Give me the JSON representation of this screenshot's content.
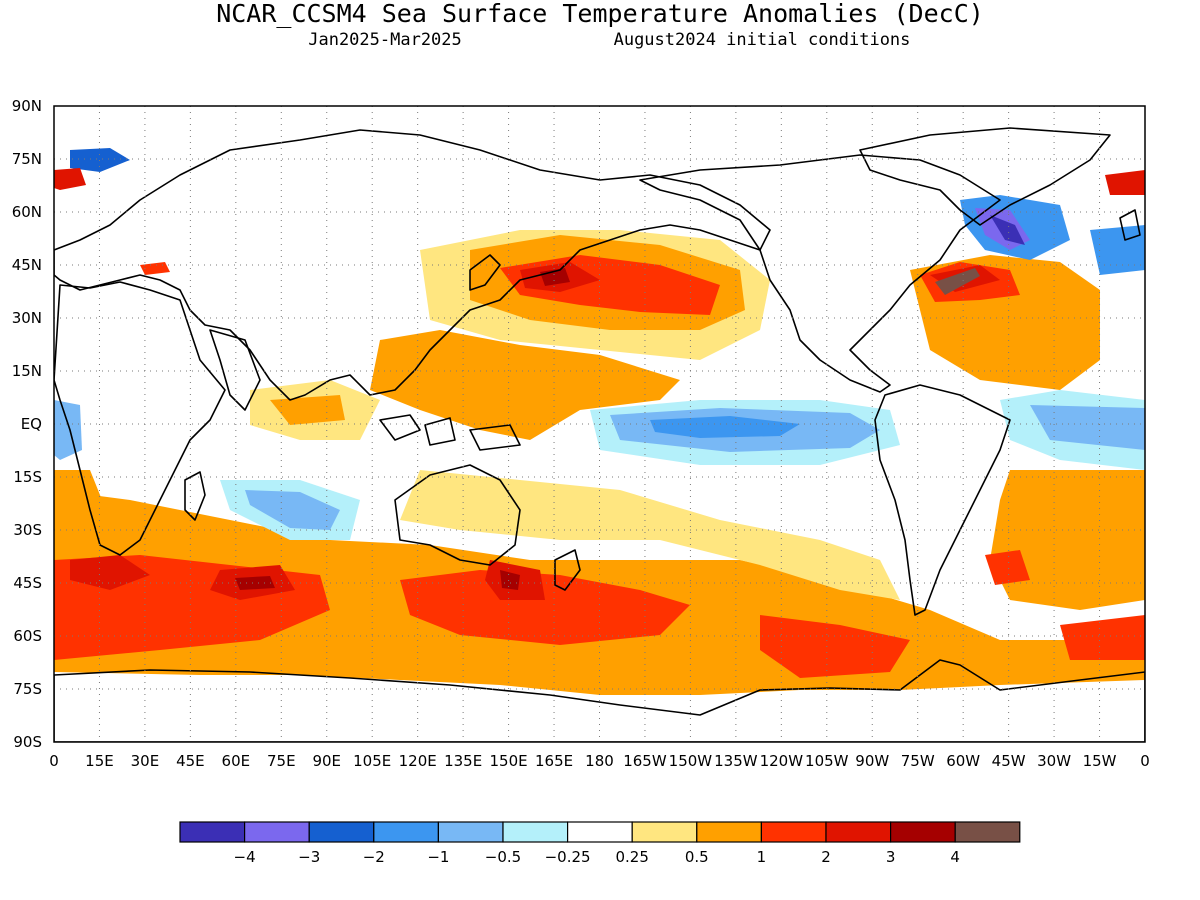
{
  "title": "NCAR_CCSM4 Sea Surface Temperature Anomalies (DecC)",
  "subtitle_left": "Jan2025-Mar2025",
  "subtitle_right": "August2024 initial conditions",
  "map": {
    "lon_range": [
      0,
      360
    ],
    "lat_range": [
      -90,
      90
    ],
    "y_ticks": [
      "90N",
      "75N",
      "60N",
      "45N",
      "30N",
      "15N",
      "EQ",
      "15S",
      "30S",
      "45S",
      "60S",
      "75S",
      "90S"
    ],
    "x_ticks": [
      "0",
      "15E",
      "30E",
      "45E",
      "60E",
      "75E",
      "90E",
      "105E",
      "120E",
      "135E",
      "150E",
      "165E",
      "180",
      "165W",
      "150W",
      "135W",
      "120W",
      "105W",
      "90W",
      "75W",
      "60W",
      "45W",
      "30W",
      "15W",
      "0"
    ],
    "grid": true
  },
  "colorbar": {
    "colors": [
      "#3b2fb5",
      "#7b68ee",
      "#1560d0",
      "#3c96f0",
      "#78b8f5",
      "#b4f0fa",
      "#ffffff",
      "#ffe680",
      "#ffa000",
      "#ff3200",
      "#e01400",
      "#a50000",
      "#785046"
    ],
    "labels": [
      "-4",
      "-3",
      "-2",
      "-1",
      "-0.5",
      "-0.25",
      "0.25",
      "0.5",
      "1",
      "2",
      "3",
      "4"
    ]
  }
}
